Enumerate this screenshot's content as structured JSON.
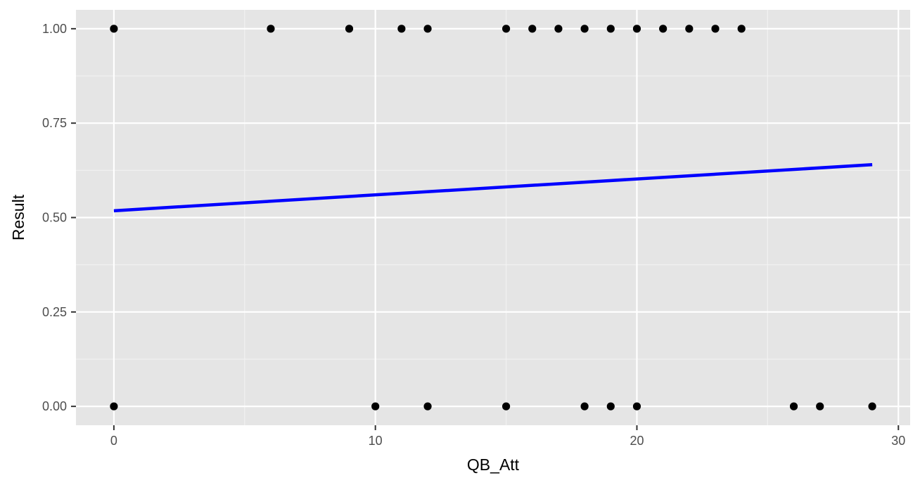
{
  "chart_data": {
    "type": "scatter",
    "title": "",
    "xlabel": "QB_Att",
    "ylabel": "Result",
    "xlim": [
      -1.45,
      30.45
    ],
    "ylim": [
      -0.05,
      1.05
    ],
    "x_ticks": [
      0,
      10,
      20,
      30
    ],
    "x_tick_labels": [
      "0",
      "10",
      "20",
      "30"
    ],
    "y_ticks": [
      0,
      0.25,
      0.5,
      0.75,
      1
    ],
    "y_tick_labels": [
      "0.00",
      "0.25",
      "0.50",
      "0.75",
      "1.00"
    ],
    "grid": true,
    "points": [
      {
        "x": 0,
        "y": 1
      },
      {
        "x": 6,
        "y": 1
      },
      {
        "x": 9,
        "y": 1
      },
      {
        "x": 11,
        "y": 1
      },
      {
        "x": 12,
        "y": 1
      },
      {
        "x": 15,
        "y": 1
      },
      {
        "x": 16,
        "y": 1
      },
      {
        "x": 17,
        "y": 1
      },
      {
        "x": 18,
        "y": 1
      },
      {
        "x": 19,
        "y": 1
      },
      {
        "x": 20,
        "y": 1
      },
      {
        "x": 21,
        "y": 1
      },
      {
        "x": 22,
        "y": 1
      },
      {
        "x": 23,
        "y": 1
      },
      {
        "x": 24,
        "y": 1
      },
      {
        "x": 0,
        "y": 0
      },
      {
        "x": 10,
        "y": 0
      },
      {
        "x": 12,
        "y": 0
      },
      {
        "x": 15,
        "y": 0
      },
      {
        "x": 18,
        "y": 0
      },
      {
        "x": 19,
        "y": 0
      },
      {
        "x": 20,
        "y": 0
      },
      {
        "x": 26,
        "y": 0
      },
      {
        "x": 27,
        "y": 0
      },
      {
        "x": 29,
        "y": 0
      }
    ],
    "fit_line": {
      "x": [
        0,
        29
      ],
      "y": [
        0.518,
        0.64
      ]
    },
    "colors": {
      "panel": "#e5e5e5",
      "grid_major": "#ffffff",
      "grid_minor": "#f2f2f2",
      "points": "#000000",
      "fit_line": "#0000ff",
      "tick_text": "#4d4d4d",
      "axis_title": "#000000"
    }
  }
}
